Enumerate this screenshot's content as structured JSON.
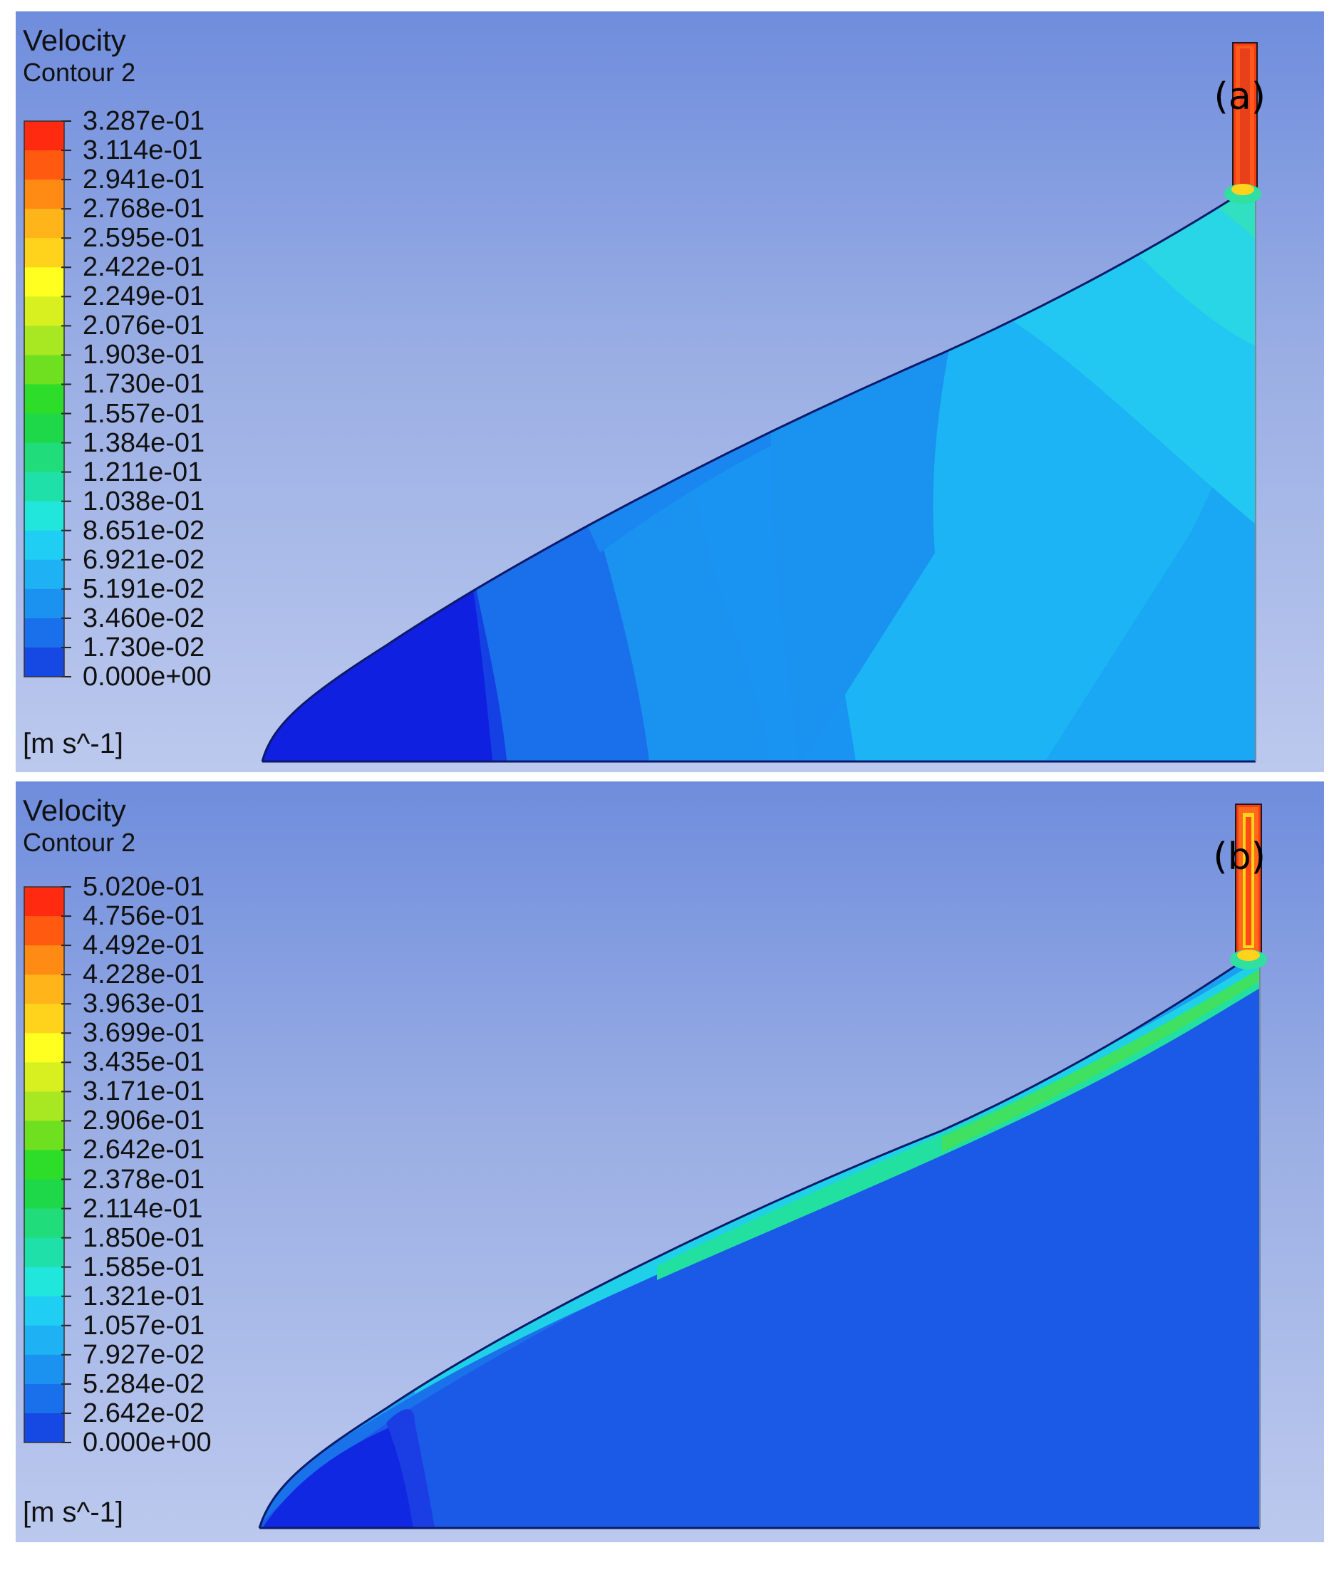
{
  "panels": [
    {
      "title": "Velocity",
      "subtitle": "Contour 2",
      "units": "[m s^-1]",
      "tag": "(a)",
      "legend_ticks": [
        "3.287e-01",
        "3.114e-01",
        "2.941e-01",
        "2.768e-01",
        "2.595e-01",
        "2.422e-01",
        "2.249e-01",
        "2.076e-01",
        "1.903e-01",
        "1.730e-01",
        "1.557e-01",
        "1.384e-01",
        "1.211e-01",
        "1.038e-01",
        "8.651e-02",
        "6.921e-02",
        "5.191e-02",
        "3.460e-02",
        "1.730e-02",
        "0.000e+00"
      ]
    },
    {
      "title": "Velocity",
      "subtitle": "Contour 2",
      "units": "[m s^-1]",
      "tag": "(b)",
      "legend_ticks": [
        "5.020e-01",
        "4.756e-01",
        "4.492e-01",
        "4.228e-01",
        "3.963e-01",
        "3.699e-01",
        "3.435e-01",
        "3.171e-01",
        "2.906e-01",
        "2.642e-01",
        "2.378e-01",
        "2.114e-01",
        "1.850e-01",
        "1.585e-01",
        "1.321e-01",
        "1.057e-01",
        "7.927e-02",
        "5.284e-02",
        "2.642e-02",
        "0.000e+00"
      ]
    }
  ],
  "colors": {
    "colormap_top_to_bottom": [
      "#ff2a10",
      "#ff5a10",
      "#ff8a14",
      "#ffb41a",
      "#ffd21c",
      "#ffff20",
      "#d8f020",
      "#a8e822",
      "#6ee020",
      "#2edc2a",
      "#1ed84a",
      "#20dc7a",
      "#20e0aa",
      "#20e6dc",
      "#20cef4",
      "#1eb2f4",
      "#1c92f0",
      "#1a70ea",
      "#1648e4",
      "#1020e0"
    ]
  }
}
